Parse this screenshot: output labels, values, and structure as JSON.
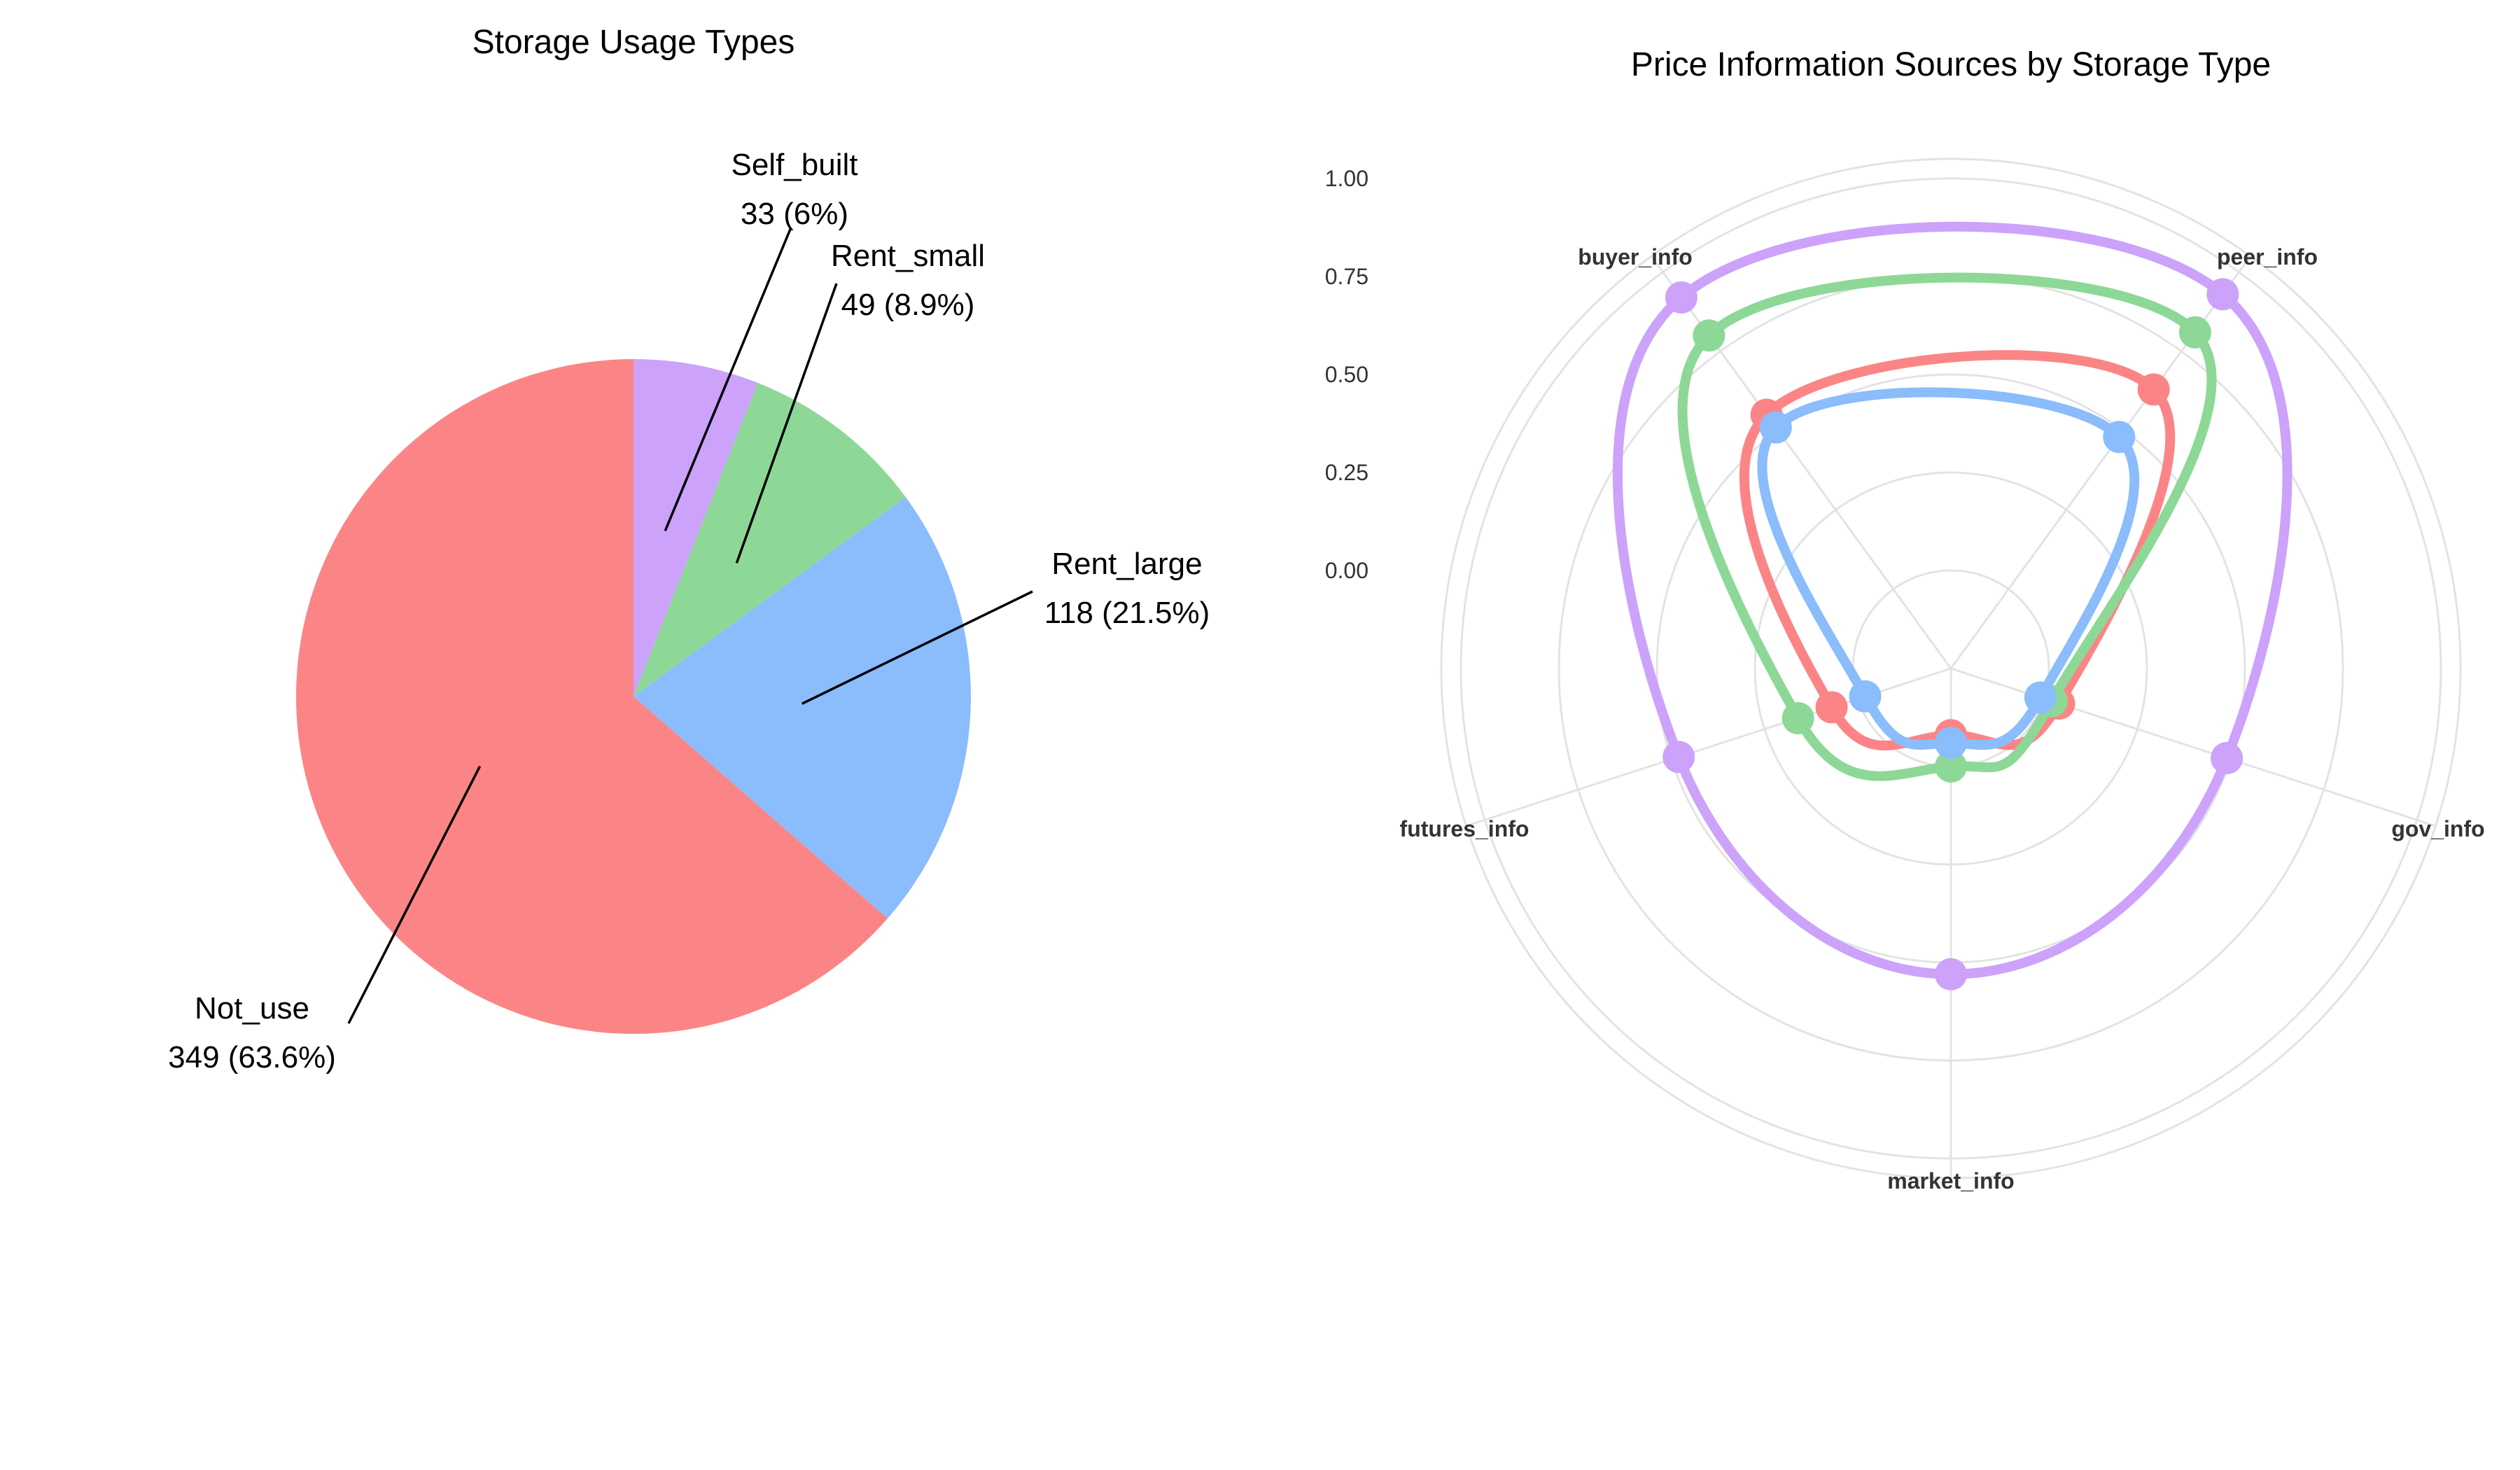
{
  "chart_data": [
    {
      "type": "pie",
      "title": "Storage Usage Types",
      "slices": [
        {
          "name": "Self_built",
          "value": 33,
          "pct_label": "33 (6%)",
          "color": "#cca2fb"
        },
        {
          "name": "Rent_small",
          "value": 49,
          "pct_label": "49 (8.9%)",
          "color": "#8dd897"
        },
        {
          "name": "Rent_large",
          "value": 118,
          "pct_label": "118 (21.5%)",
          "color": "#8bbcfb"
        },
        {
          "name": "Not_use",
          "value": 349,
          "pct_label": "349 (63.6%)",
          "color": "#fb8586"
        }
      ]
    },
    {
      "type": "radar",
      "title": "Price Information Sources by Storage Type",
      "axes": [
        "peer_info",
        "gov_info",
        "market_info",
        "futures_info",
        "buyer_info"
      ],
      "radial_range": [
        -0.25,
        1.05
      ],
      "radial_ticks": [
        "0.00",
        "0.25",
        "0.50",
        "0.75",
        "1.00"
      ],
      "radial_tick_values": [
        0,
        0.25,
        0.5,
        0.75,
        1.0
      ],
      "grid": true,
      "series": [
        {
          "color": "#fb8586",
          "values": [
            0.63,
            0.04,
            -0.08,
            0.07,
            0.55
          ]
        },
        {
          "color": "#8dd897",
          "values": [
            0.81,
            0.02,
            0.0,
            0.16,
            0.8
          ]
        },
        {
          "color": "#cca2fb",
          "values": [
            0.93,
            0.49,
            0.53,
            0.48,
            0.92
          ]
        },
        {
          "color": "#8bbcfb",
          "values": [
            0.48,
            -0.01,
            -0.06,
            -0.02,
            0.51
          ]
        }
      ]
    }
  ]
}
